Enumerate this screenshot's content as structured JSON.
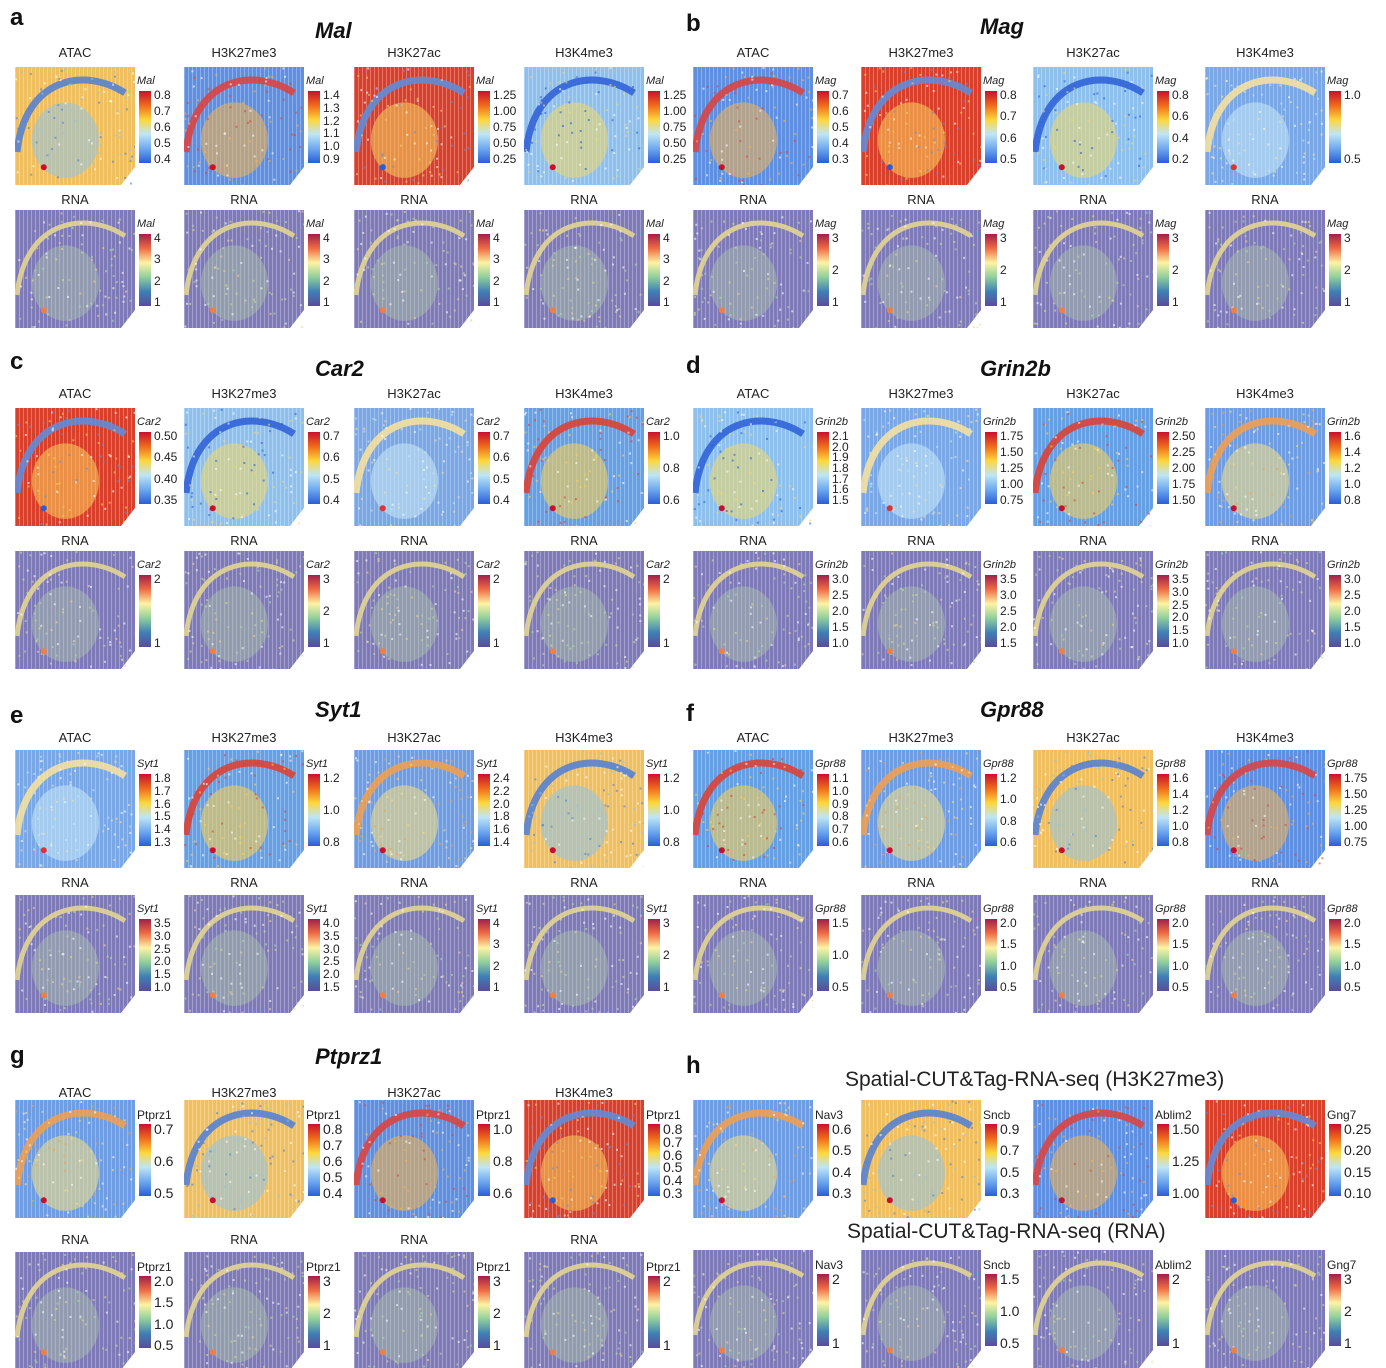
{
  "panels": [
    {
      "letter": "a",
      "gene": "Mal",
      "title_italic": true,
      "top_mods": [
        "ATAC",
        "H3K27me3",
        "H3K27ac",
        "H3K4me3"
      ],
      "top_ticks": [
        [
          "0.8",
          "0.7",
          "0.6",
          "0.5",
          "0.4"
        ],
        [
          "1.4",
          "1.3",
          "1.2",
          "1.1",
          "1.0",
          "0.9"
        ],
        [
          "1.25",
          "1.00",
          "0.75",
          "0.50",
          "0.25"
        ],
        [
          "1.25",
          "1.00",
          "0.75",
          "0.50",
          "0.25"
        ]
      ],
      "bottom_mods": [
        "RNA",
        "RNA",
        "RNA",
        "RNA"
      ],
      "bottom_ticks": [
        [
          "4",
          "3",
          "2",
          "1"
        ],
        [
          "4",
          "3",
          "2",
          "1"
        ],
        [
          "4",
          "3",
          "2",
          "1"
        ],
        [
          "4",
          "3",
          "2",
          "1"
        ]
      ],
      "legend_label": "Mal"
    },
    {
      "letter": "b",
      "gene": "Mag",
      "title_italic": true,
      "top_mods": [
        "ATAC",
        "H3K27me3",
        "H3K27ac",
        "H3K4me3"
      ],
      "top_ticks": [
        [
          "0.7",
          "0.6",
          "0.5",
          "0.4",
          "0.3"
        ],
        [
          "0.8",
          "0.7",
          "0.6",
          "0.5"
        ],
        [
          "0.8",
          "0.6",
          "0.4",
          "0.2"
        ],
        [
          "1.0",
          "0.5"
        ]
      ],
      "bottom_mods": [
        "RNA",
        "RNA",
        "RNA",
        "RNA"
      ],
      "bottom_ticks": [
        [
          "3",
          "2",
          "1"
        ],
        [
          "3",
          "2",
          "1"
        ],
        [
          "3",
          "2",
          "1"
        ],
        [
          "3",
          "2",
          "1"
        ]
      ],
      "legend_label": "Mag"
    },
    {
      "letter": "c",
      "gene": "Car2",
      "title_italic": true,
      "top_mods": [
        "ATAC",
        "H3K27me3",
        "H3K27ac",
        "H3K4me3"
      ],
      "top_ticks": [
        [
          "0.50",
          "0.45",
          "0.40",
          "0.35"
        ],
        [
          "0.7",
          "0.6",
          "0.5",
          "0.4"
        ],
        [
          "0.7",
          "0.6",
          "0.5",
          "0.4"
        ],
        [
          "1.0",
          "0.8",
          "0.6"
        ]
      ],
      "bottom_mods": [
        "RNA",
        "RNA",
        "RNA",
        "RNA"
      ],
      "bottom_ticks": [
        [
          "2",
          "1"
        ],
        [
          "3",
          "2",
          "1"
        ],
        [
          "2",
          "1"
        ],
        [
          "2",
          "1"
        ]
      ],
      "legend_label": "Car2"
    },
    {
      "letter": "d",
      "gene": "Grin2b",
      "title_italic": true,
      "top_mods": [
        "ATAC",
        "H3K27me3",
        "H3K27ac",
        "H3K4me3"
      ],
      "top_ticks": [
        [
          "2.1",
          "2.0",
          "1.9",
          "1.8",
          "1.7",
          "1.6",
          "1.5"
        ],
        [
          "1.75",
          "1.50",
          "1.25",
          "1.00",
          "0.75"
        ],
        [
          "2.50",
          "2.25",
          "2.00",
          "1.75",
          "1.50"
        ],
        [
          "1.6",
          "1.4",
          "1.2",
          "1.0",
          "0.8"
        ]
      ],
      "bottom_mods": [
        "RNA",
        "RNA",
        "RNA",
        "RNA"
      ],
      "bottom_ticks": [
        [
          "3.0",
          "2.5",
          "2.0",
          "1.5",
          "1.0"
        ],
        [
          "3.5",
          "3.0",
          "2.5",
          "2.0",
          "1.5"
        ],
        [
          "3.5",
          "3.0",
          "2.5",
          "2.0",
          "1.5",
          "1.0"
        ],
        [
          "3.0",
          "2.5",
          "2.0",
          "1.5",
          "1.0"
        ]
      ],
      "legend_label": "Grin2b"
    },
    {
      "letter": "e",
      "gene": "Syt1",
      "title_italic": true,
      "top_mods": [
        "ATAC",
        "H3K27me3",
        "H3K27ac",
        "H3K4me3"
      ],
      "top_ticks": [
        [
          "1.8",
          "1.7",
          "1.6",
          "1.5",
          "1.4",
          "1.3"
        ],
        [
          "1.2",
          "1.0",
          "0.8"
        ],
        [
          "2.4",
          "2.2",
          "2.0",
          "1.8",
          "1.6",
          "1.4"
        ],
        [
          "1.2",
          "1.0",
          "0.8"
        ]
      ],
      "bottom_mods": [
        "RNA",
        "RNA",
        "RNA",
        "RNA"
      ],
      "bottom_ticks": [
        [
          "3.5",
          "3.0",
          "2.5",
          "2.0",
          "1.5",
          "1.0"
        ],
        [
          "4.0",
          "3.5",
          "3.0",
          "2.5",
          "2.0",
          "1.5"
        ],
        [
          "4",
          "3",
          "2",
          "1"
        ],
        [
          "3",
          "2",
          "1"
        ]
      ],
      "legend_label": "Syt1"
    },
    {
      "letter": "f",
      "gene": "Gpr88",
      "title_italic": true,
      "top_mods": [
        "ATAC",
        "H3K27me3",
        "H3K27ac",
        "H3K4me3"
      ],
      "top_ticks": [
        [
          "1.1",
          "1.0",
          "0.9",
          "0.8",
          "0.7",
          "0.6"
        ],
        [
          "1.2",
          "1.0",
          "0.8",
          "0.6"
        ],
        [
          "1.6",
          "1.4",
          "1.2",
          "1.0",
          "0.8"
        ],
        [
          "1.75",
          "1.50",
          "1.25",
          "1.00",
          "0.75"
        ]
      ],
      "bottom_mods": [
        "RNA",
        "RNA",
        "RNA",
        "RNA"
      ],
      "bottom_ticks": [
        [
          "1.5",
          "1.0",
          "0.5"
        ],
        [
          "2.0",
          "1.5",
          "1.0",
          "0.5"
        ],
        [
          "2.0",
          "1.5",
          "1.0",
          "0.5"
        ],
        [
          "2.0",
          "1.5",
          "1.0",
          "0.5"
        ]
      ],
      "legend_label": "Gpr88"
    },
    {
      "letter": "g",
      "gene": "Ptprz1",
      "title_italic": true,
      "top_mods": [
        "ATAC",
        "H3K27me3",
        "H3K27ac",
        "H3K4me3"
      ],
      "top_ticks": [
        [
          "0.7",
          "0.6",
          "0.5"
        ],
        [
          "0.8",
          "0.7",
          "0.6",
          "0.5",
          "0.4"
        ],
        [
          "1.0",
          "0.8",
          "0.6"
        ],
        [
          "0.8",
          "0.7",
          "0.6",
          "0.5",
          "0.4",
          "0.3"
        ]
      ],
      "bottom_mods": [
        "RNA",
        "RNA",
        "RNA",
        "RNA"
      ],
      "bottom_ticks": [
        [
          "2.0",
          "1.5",
          "1.0",
          "0.5"
        ],
        [
          "3",
          "2",
          "1"
        ],
        [
          "3",
          "2",
          "1"
        ],
        [
          "2",
          "1"
        ]
      ],
      "legend_label": "Ptprz1"
    },
    {
      "letter": "h",
      "top_title": "Spatial-CUT&Tag-RNA-seq (H3K27me3)",
      "bottom_title": "Spatial-CUT&Tag-RNA-seq (RNA)",
      "genes": [
        "Nav3",
        "Sncb",
        "Ablim2",
        "Gng7"
      ],
      "top_ticks": [
        [
          "0.6",
          "0.5",
          "0.4",
          "0.3"
        ],
        [
          "0.9",
          "0.7",
          "0.5",
          "0.3"
        ],
        [
          "1.50",
          "1.25",
          "1.00"
        ],
        [
          "0.25",
          "0.20",
          "0.15",
          "0.10"
        ]
      ],
      "bottom_ticks": [
        [
          "2",
          "1"
        ],
        [
          "1.5",
          "1.0",
          "0.5"
        ],
        [
          "2",
          "1"
        ],
        [
          "3",
          "2",
          "1"
        ]
      ]
    }
  ],
  "colors": {
    "chromatin_scale": [
      "#c8102e",
      "#f06a1c",
      "#fdd73b",
      "#bfe6f5",
      "#6ea8ef",
      "#2b5dd6"
    ],
    "rna_scale": [
      "#9e1f4a",
      "#f06b44",
      "#fdf3a4",
      "#8fcf9c",
      "#3f7fb5",
      "#5a4c9a"
    ],
    "tissue_blue": "#6c9ce0",
    "rna_background": "#7e7ab8"
  }
}
